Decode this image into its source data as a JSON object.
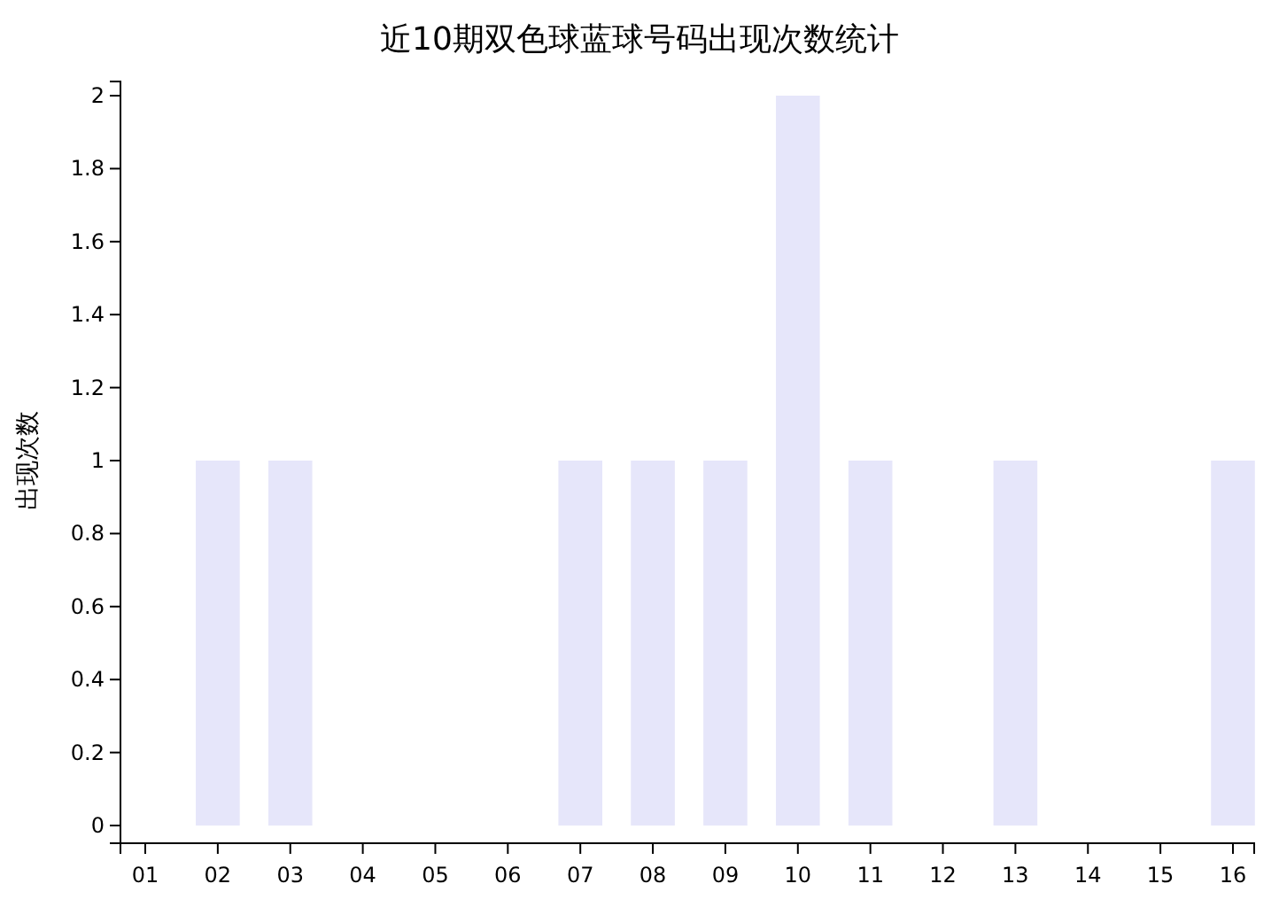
{
  "chart_data": {
    "type": "bar",
    "title": "近10期双色球蓝球号码出现次数统计",
    "ylabel": "出现次数",
    "categories": [
      "01",
      "02",
      "03",
      "04",
      "05",
      "06",
      "07",
      "08",
      "09",
      "10",
      "11",
      "12",
      "13",
      "14",
      "15",
      "16"
    ],
    "values": [
      0,
      1,
      1,
      0,
      0,
      0,
      1,
      1,
      1,
      2,
      1,
      0,
      1,
      0,
      0,
      1
    ],
    "color": "#e6e6fa",
    "ylim": [
      0,
      2
    ],
    "yticks": [
      0,
      0.2,
      0.4,
      0.6,
      0.8,
      1,
      1.2,
      1.4,
      1.6,
      1.8,
      2
    ],
    "grid": false
  }
}
